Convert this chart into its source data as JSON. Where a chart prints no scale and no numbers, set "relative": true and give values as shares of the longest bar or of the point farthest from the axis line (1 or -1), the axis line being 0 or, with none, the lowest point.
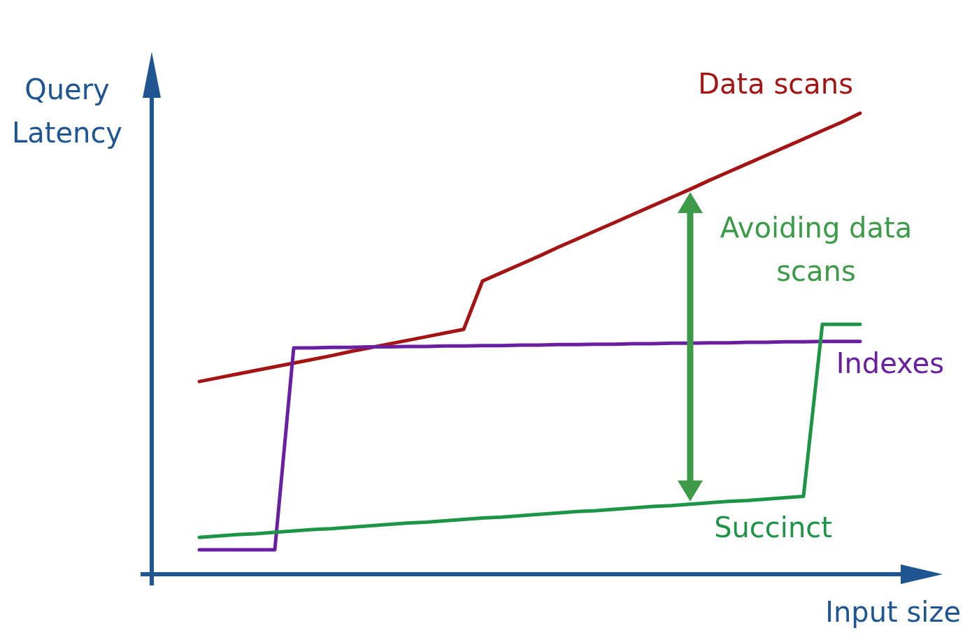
{
  "chart_data": {
    "type": "line",
    "relative": true,
    "xlabel": "Input size",
    "ylabel": "Query Latency",
    "marker": "none",
    "line_style": "solid",
    "categories": [
      null,
      null,
      null,
      null,
      null,
      null,
      null,
      null,
      null,
      null,
      null,
      null,
      null,
      null,
      null,
      null,
      null,
      null,
      null,
      null,
      null,
      null,
      null,
      null,
      null,
      null,
      null,
      null,
      null,
      null,
      null,
      null,
      null,
      null,
      null,
      null
    ],
    "series": [
      {
        "name": "Data scans",
        "color": "#a31515",
        "values": [
          0.418,
          0.426,
          0.434,
          0.442,
          0.45,
          0.458,
          0.466,
          0.474,
          0.483,
          0.491,
          0.499,
          0.507,
          0.515,
          0.523,
          0.531,
          0.636,
          0.654,
          0.672,
          0.69,
          0.709,
          0.727,
          0.745,
          0.763,
          0.781,
          0.799,
          0.817,
          0.835,
          0.854,
          0.872,
          0.89,
          0.908,
          0.926,
          0.944,
          0.962,
          0.98,
          1
        ]
      },
      {
        "name": "Indexes",
        "color": "#6a1fa0",
        "values": [
          0.053,
          0.053,
          0.053,
          0.053,
          0.053,
          0.491,
          0.491,
          0.492,
          0.492,
          0.493,
          0.493,
          0.494,
          0.494,
          0.495,
          0.495,
          0.496,
          0.496,
          0.497,
          0.497,
          0.498,
          0.498,
          0.499,
          0.499,
          0.5,
          0.5,
          0.501,
          0.501,
          0.502,
          0.502,
          0.503,
          0.503,
          0.504,
          0.504,
          0.505,
          0.505,
          0.505
        ]
      },
      {
        "name": "Succinct",
        "color": "#1e9447",
        "values": [
          0.08,
          0.083,
          0.086,
          0.088,
          0.091,
          0.094,
          0.097,
          0.099,
          0.102,
          0.105,
          0.108,
          0.111,
          0.113,
          0.116,
          0.119,
          0.122,
          0.124,
          0.127,
          0.13,
          0.133,
          0.136,
          0.138,
          0.141,
          0.144,
          0.147,
          0.149,
          0.152,
          0.155,
          0.158,
          0.16,
          0.163,
          0.166,
          0.169,
          0.542,
          0.542,
          0.542
        ]
      }
    ],
    "annotations": [
      "Avoiding data scans"
    ]
  }
}
